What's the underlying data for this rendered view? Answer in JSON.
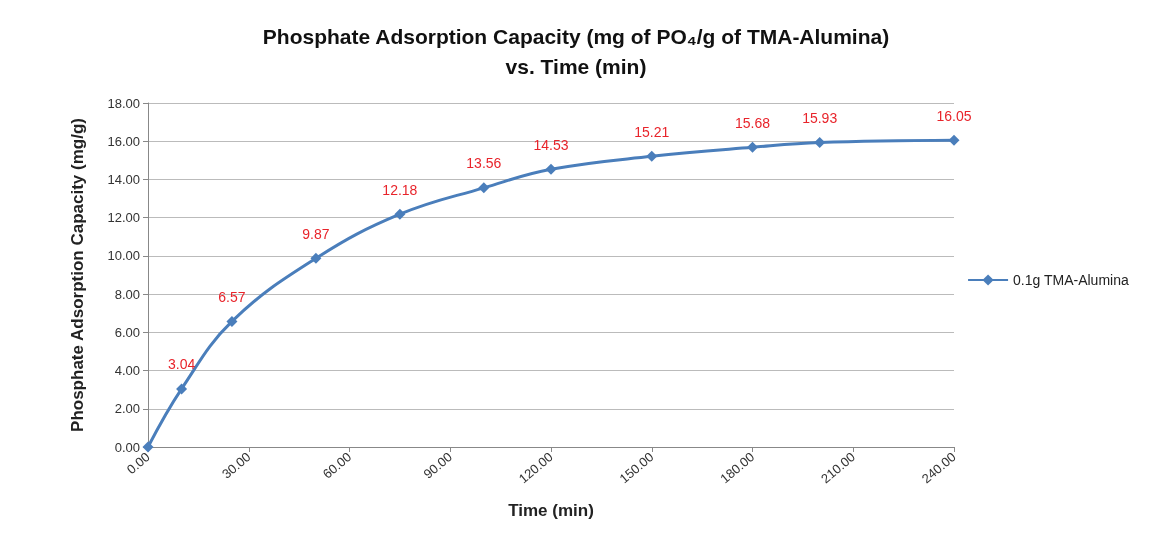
{
  "chart_data": {
    "type": "line",
    "title": "Phosphate Adsorption Capacity (mg of PO₄/g of TMA-Alumina)\nvs. Time (min)",
    "xlabel": "Time (min)",
    "ylabel": "Phosphate Adsorption Capacity (mg/g)",
    "x": [
      0,
      10,
      25,
      50,
      75,
      100,
      120,
      150,
      180,
      200,
      240
    ],
    "series": [
      {
        "name": "0.1g TMA-Alumina",
        "color": "#4a7ebb",
        "values": [
          0,
          3.04,
          6.57,
          9.87,
          12.18,
          13.56,
          14.53,
          15.21,
          15.68,
          15.93,
          16.05
        ],
        "value_labels": [
          null,
          "3.04",
          "6.57",
          "9.87",
          "12.18",
          "13.56",
          "14.53",
          "15.21",
          "15.68",
          "15.93",
          "16.05"
        ]
      }
    ],
    "xlim": [
      0,
      240
    ],
    "xticks": [
      {
        "value": 0,
        "label": "0.00"
      },
      {
        "value": 30,
        "label": "30.00"
      },
      {
        "value": 60,
        "label": "60.00"
      },
      {
        "value": 90,
        "label": "90.00"
      },
      {
        "value": 120,
        "label": "120.00"
      },
      {
        "value": 150,
        "label": "150.00"
      },
      {
        "value": 180,
        "label": "180.00"
      },
      {
        "value": 210,
        "label": "210.00"
      },
      {
        "value": 240,
        "label": "240.00"
      }
    ],
    "ylim": [
      0,
      18
    ],
    "yticks": [
      {
        "value": 0,
        "label": "0.00"
      },
      {
        "value": 2,
        "label": "2.00"
      },
      {
        "value": 4,
        "label": "4.00"
      },
      {
        "value": 6,
        "label": "6.00"
      },
      {
        "value": 8,
        "label": "8.00"
      },
      {
        "value": 10,
        "label": "10.00"
      },
      {
        "value": 12,
        "label": "12.00"
      },
      {
        "value": 14,
        "label": "14.00"
      },
      {
        "value": 16,
        "label": "16.00"
      },
      {
        "value": 18,
        "label": "18.00"
      }
    ],
    "grid": "y",
    "legend": "right",
    "marker": "diamond",
    "line_style": "solid"
  }
}
